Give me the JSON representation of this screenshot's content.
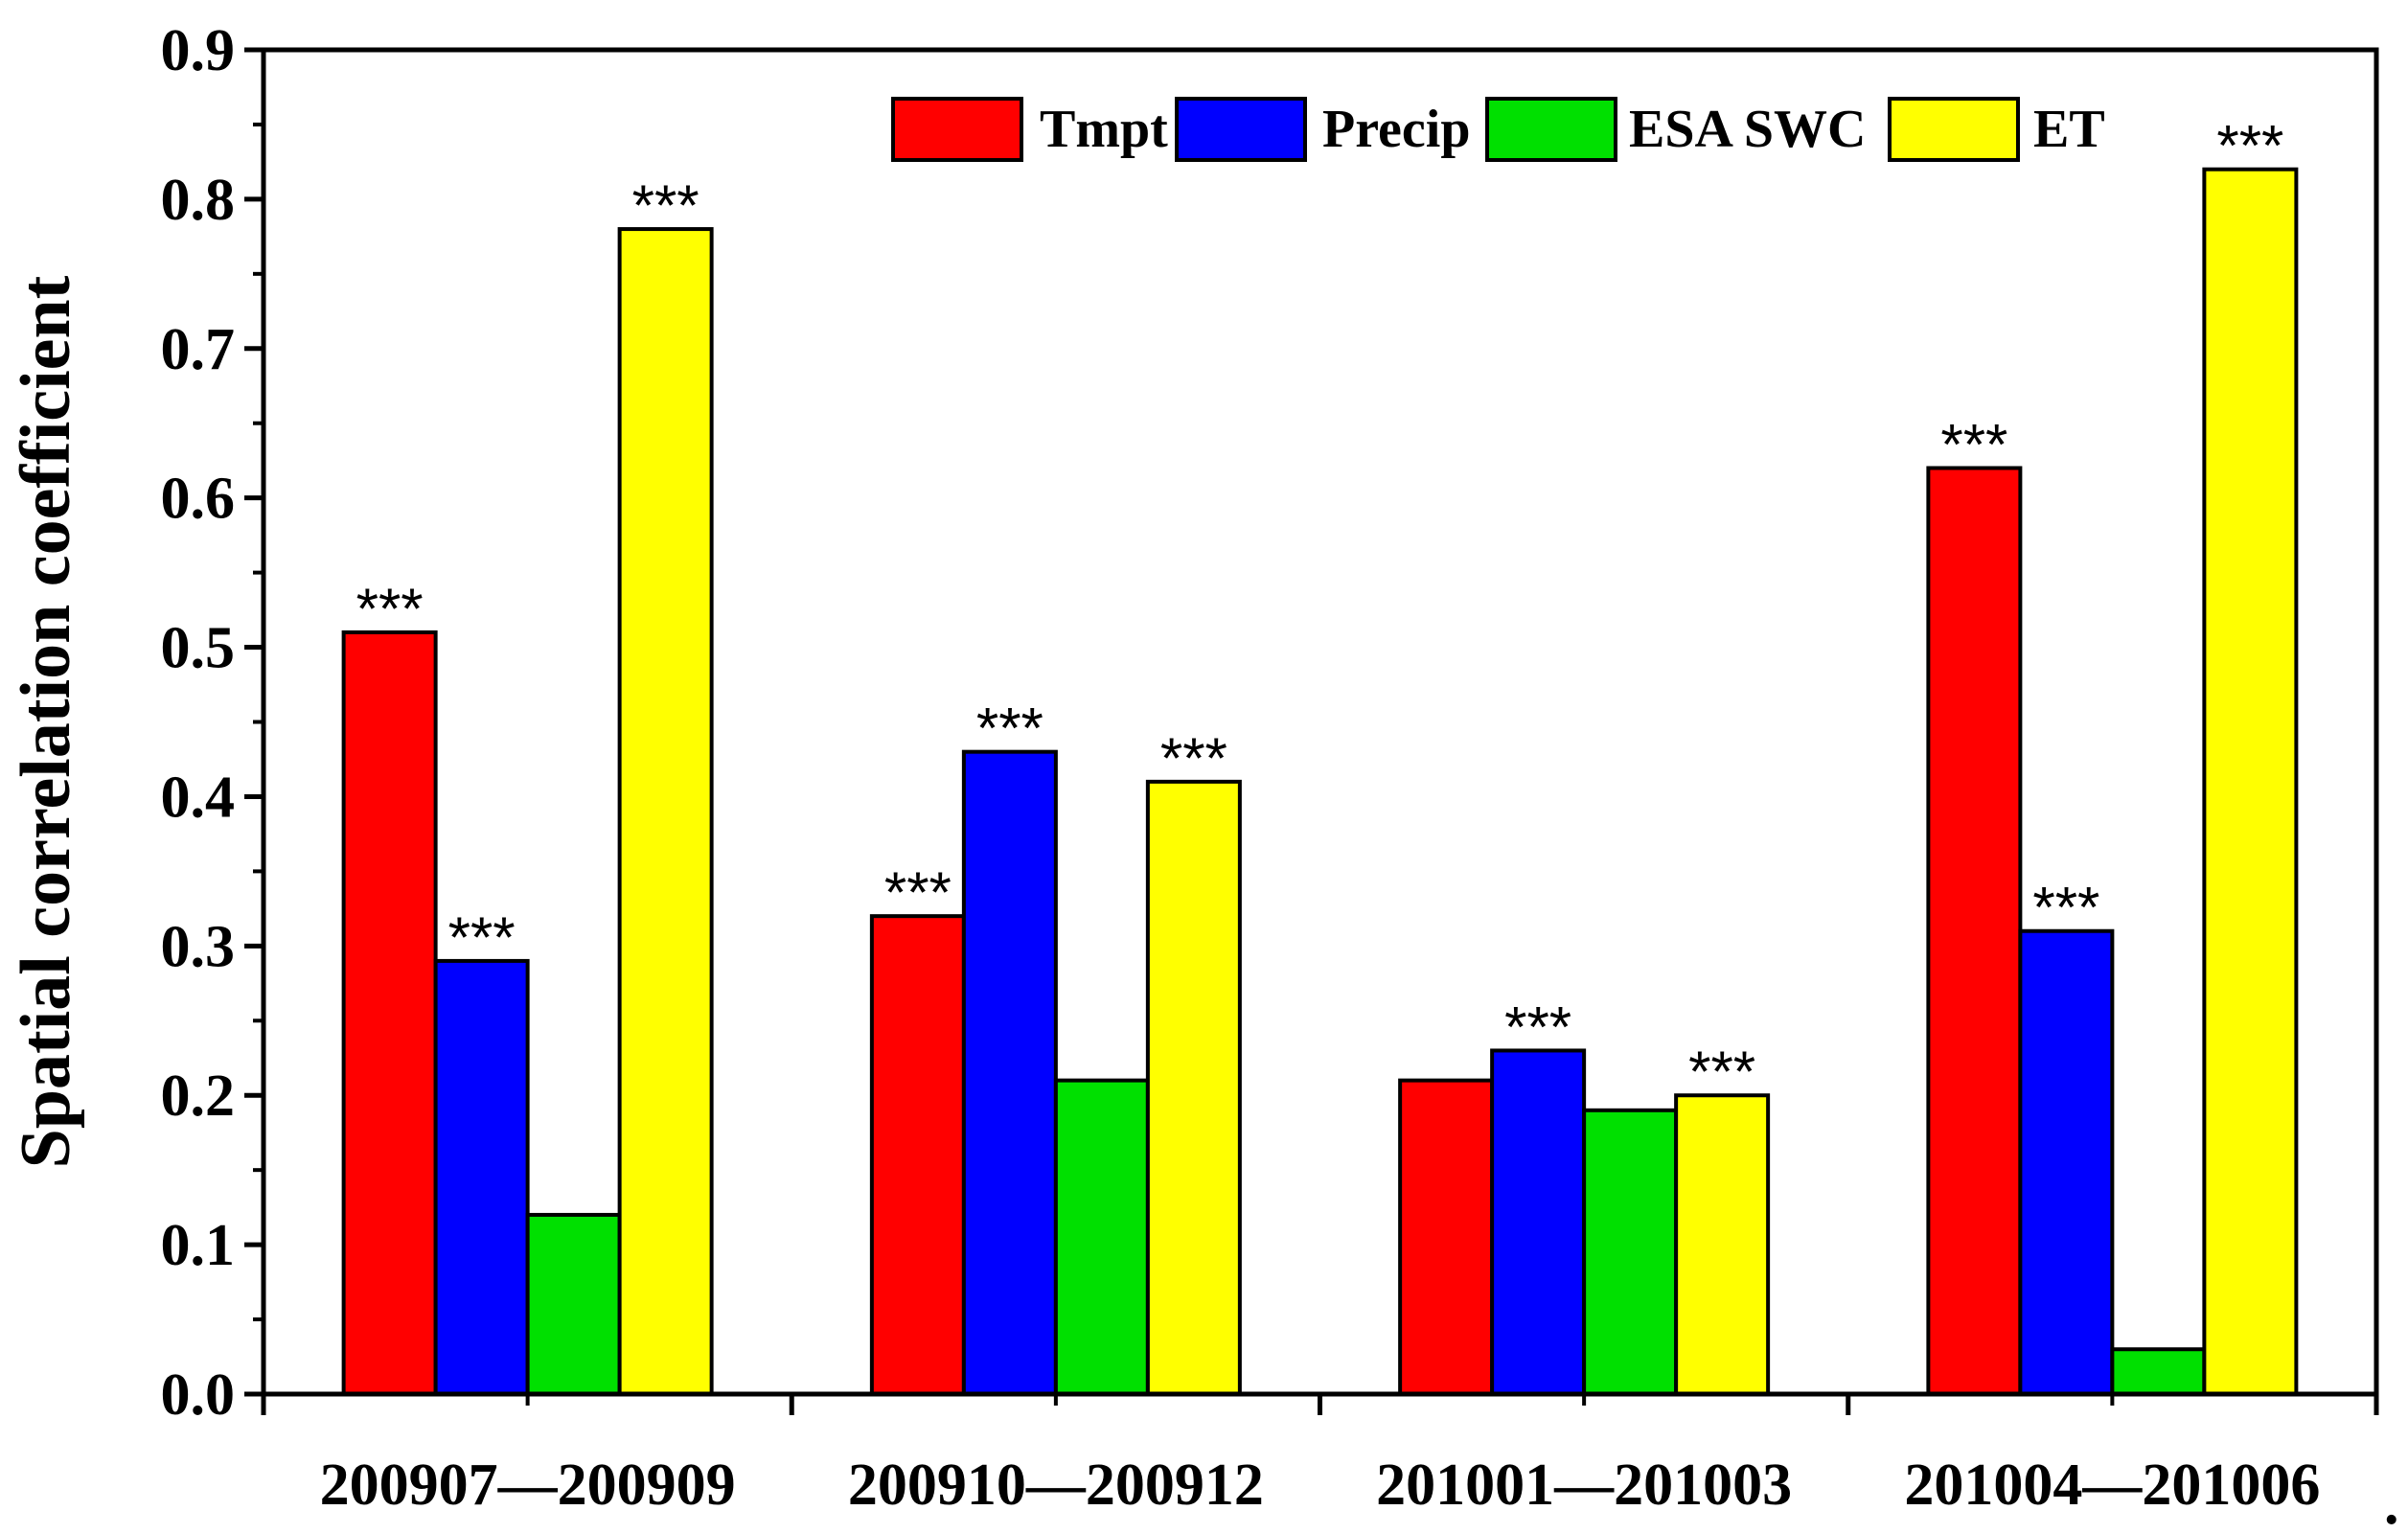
{
  "chart_data": {
    "type": "bar",
    "title": "",
    "xlabel": "",
    "ylabel": "Spatial correlation coefficient",
    "ylim": [
      0,
      0.9
    ],
    "yticks": [
      "0.0",
      "0.1",
      "0.2",
      "0.3",
      "0.4",
      "0.5",
      "0.6",
      "0.7",
      "0.8",
      "0.9"
    ],
    "categories": [
      "200907—200909",
      "200910—200912",
      "201001—201003",
      "201004—201006"
    ],
    "series": [
      {
        "name": "Tmpt",
        "color": "#ff0000",
        "values": [
          0.51,
          0.32,
          0.21,
          0.62
        ],
        "significance": [
          "***",
          "***",
          "",
          "***"
        ]
      },
      {
        "name": "Precip",
        "color": "#0000ff",
        "values": [
          0.29,
          0.43,
          0.23,
          0.31
        ],
        "significance": [
          "***",
          "***",
          "***",
          "***"
        ]
      },
      {
        "name": "ESA SWC",
        "color": "#00e000",
        "values": [
          0.12,
          0.21,
          0.19,
          0.03
        ],
        "significance": [
          "",
          "",
          "",
          ""
        ]
      },
      {
        "name": "ET",
        "color": "#ffff00",
        "values": [
          0.78,
          0.41,
          0.2,
          0.82
        ],
        "significance": [
          "***",
          "***",
          "***",
          "***"
        ]
      }
    ],
    "legend_position": "top",
    "grid": false,
    "stray_mark": "."
  }
}
